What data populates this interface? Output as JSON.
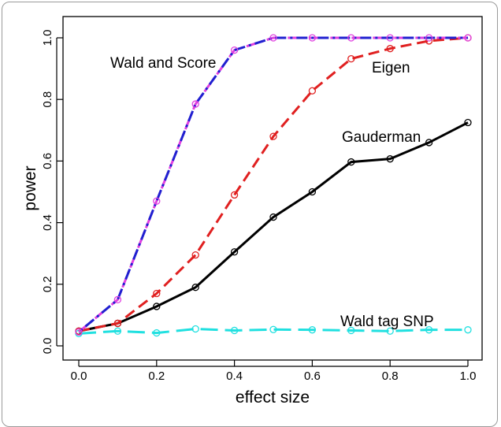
{
  "chart_data": {
    "type": "line",
    "xlabel": "effect size",
    "ylabel": "power",
    "xlim": [
      0.0,
      1.0
    ],
    "ylim": [
      0.0,
      1.0
    ],
    "x": [
      0.0,
      0.1,
      0.2,
      0.3,
      0.4,
      0.5,
      0.6,
      0.7,
      0.8,
      0.9,
      1.0
    ],
    "x_ticks": [
      "0.0",
      "0.2",
      "0.4",
      "0.6",
      "0.8",
      "1.0"
    ],
    "y_ticks": [
      "0.0",
      "0.2",
      "0.4",
      "0.6",
      "0.8",
      "1.0"
    ],
    "grid": false,
    "series": [
      {
        "name": "Wald and Score",
        "values": [
          0.045,
          0.15,
          0.47,
          0.785,
          0.96,
          1.0,
          1.0,
          1.0,
          1.0,
          1.0,
          1.0
        ],
        "color": "#e040e0",
        "overlay_color": "#2020d0",
        "line_style": "dash-dot",
        "marker": "open-circle"
      },
      {
        "name": "Eigen",
        "values": [
          0.048,
          0.073,
          0.17,
          0.295,
          0.49,
          0.68,
          0.828,
          0.932,
          0.965,
          0.99,
          1.0
        ],
        "color": "#e02020",
        "line_style": "dashed",
        "marker": "open-circle"
      },
      {
        "name": "Gauderman",
        "values": [
          0.048,
          0.073,
          0.128,
          0.19,
          0.305,
          0.418,
          0.5,
          0.597,
          0.607,
          0.66,
          0.725
        ],
        "color": "#000000",
        "line_style": "solid",
        "marker": "open-circle"
      },
      {
        "name": "Wald tag SNP",
        "values": [
          0.04,
          0.048,
          0.042,
          0.055,
          0.05,
          0.053,
          0.052,
          0.05,
          0.048,
          0.052,
          0.052
        ],
        "color": "#20e0e0",
        "line_style": "long-dash",
        "marker": "open-circle"
      }
    ]
  }
}
